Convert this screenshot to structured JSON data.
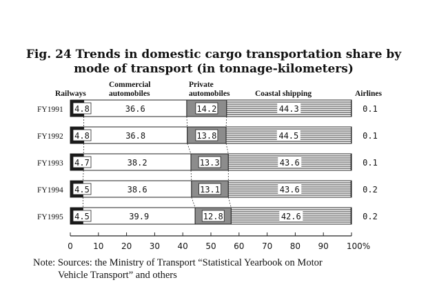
{
  "chart_data": {
    "type": "bar",
    "stacked": true,
    "orientation": "horizontal",
    "title_line1": "Fig. 24 Trends in domestic cargo transportation share by",
    "title_line2": "mode of transport (in tonnage-kilometers)",
    "categories": [
      "FY1991",
      "FY1992",
      "FY1993",
      "FY1994",
      "FY1995"
    ],
    "series": [
      {
        "name": "Railways",
        "values": [
          4.8,
          4.8,
          4.7,
          4.5,
          4.5
        ]
      },
      {
        "name": "Commercial automobiles",
        "values": [
          36.6,
          36.8,
          38.2,
          38.6,
          39.9
        ]
      },
      {
        "name": "Private automobiles",
        "values": [
          14.2,
          13.8,
          13.3,
          13.1,
          12.8
        ]
      },
      {
        "name": "Coastal shipping",
        "values": [
          44.3,
          44.5,
          43.6,
          43.6,
          42.6
        ]
      },
      {
        "name": "Airlines",
        "values": [
          0.1,
          0.1,
          0.1,
          0.2,
          0.2
        ]
      }
    ],
    "header_lines": {
      "railways": [
        "Railways"
      ],
      "commercial": [
        "Commercial",
        "automobiles"
      ],
      "private": [
        "Private",
        "automobiles"
      ],
      "coastal": [
        "Coastal shipping"
      ],
      "airlines": [
        "Airlines"
      ]
    },
    "xticks": [
      "0",
      "10",
      "20",
      "30",
      "40",
      "50",
      "60",
      "70",
      "80",
      "90",
      "100%"
    ],
    "xlim": [
      0,
      100
    ],
    "colors": {
      "railways": "#1a1a1a",
      "commercial": "#ffffff",
      "private": "#8c8c8c",
      "coastal_lines": "#222222",
      "border": "#222222"
    },
    "note_line1": "Note: Sources: the Ministry of Transport “Statistical Yearbook on Motor",
    "note_line2": "Vehicle Transport” and others"
  }
}
